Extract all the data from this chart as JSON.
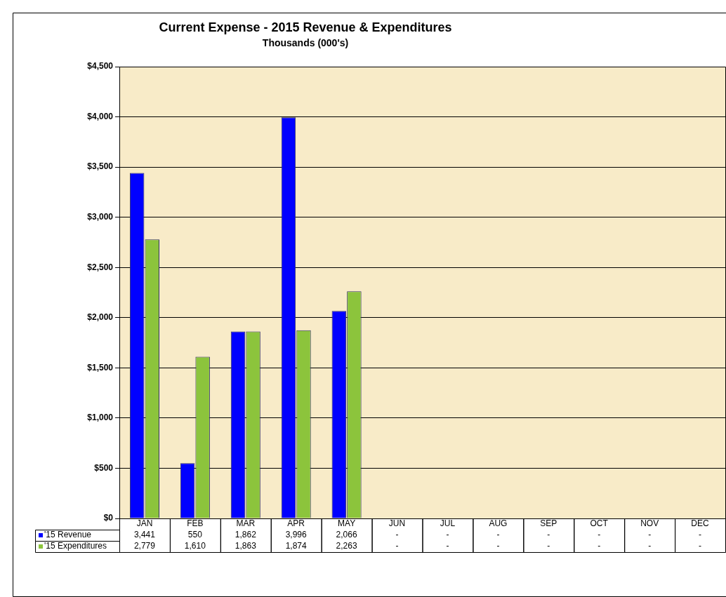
{
  "chart_data": {
    "type": "bar",
    "title": "Current Expense - 2015 Revenue & Expenditures",
    "subtitle": "Thousands (000's)",
    "categories": [
      "JAN",
      "FEB",
      "MAR",
      "APR",
      "MAY",
      "JUN",
      "JUL",
      "AUG",
      "SEP",
      "OCT",
      "NOV",
      "DEC"
    ],
    "series": [
      {
        "name": "'15 Revenue",
        "color": "#0000ff",
        "values": [
          3441,
          550,
          1862,
          3996,
          2066,
          null,
          null,
          null,
          null,
          null,
          null,
          null
        ],
        "value_labels": [
          "3,441",
          "550",
          "1,862",
          "3,996",
          "2,066",
          "-",
          "-",
          "-",
          "-",
          "-",
          "-",
          "-"
        ]
      },
      {
        "name": "'15 Expenditures",
        "color": "#8cc43c",
        "values": [
          2779,
          1610,
          1863,
          1874,
          2263,
          null,
          null,
          null,
          null,
          null,
          null,
          null
        ],
        "value_labels": [
          "2,779",
          "1,610",
          "1,863",
          "1,874",
          "2,263",
          "-",
          "-",
          "-",
          "-",
          "-",
          "-",
          "-"
        ]
      }
    ],
    "ylim": [
      0,
      4500
    ],
    "yticks": [
      {
        "value": 0,
        "label": "$0"
      },
      {
        "value": 500,
        "label": "$500"
      },
      {
        "value": 1000,
        "label": "$1,000"
      },
      {
        "value": 1500,
        "label": "$1,500"
      },
      {
        "value": 2000,
        "label": "$2,000"
      },
      {
        "value": 2500,
        "label": "$2,500"
      },
      {
        "value": 3000,
        "label": "$3,000"
      },
      {
        "value": 3500,
        "label": "$3,500"
      },
      {
        "value": 4000,
        "label": "$4,000"
      },
      {
        "value": 4500,
        "label": "$4,500"
      }
    ],
    "grid": "y",
    "legend": "bottom left"
  }
}
